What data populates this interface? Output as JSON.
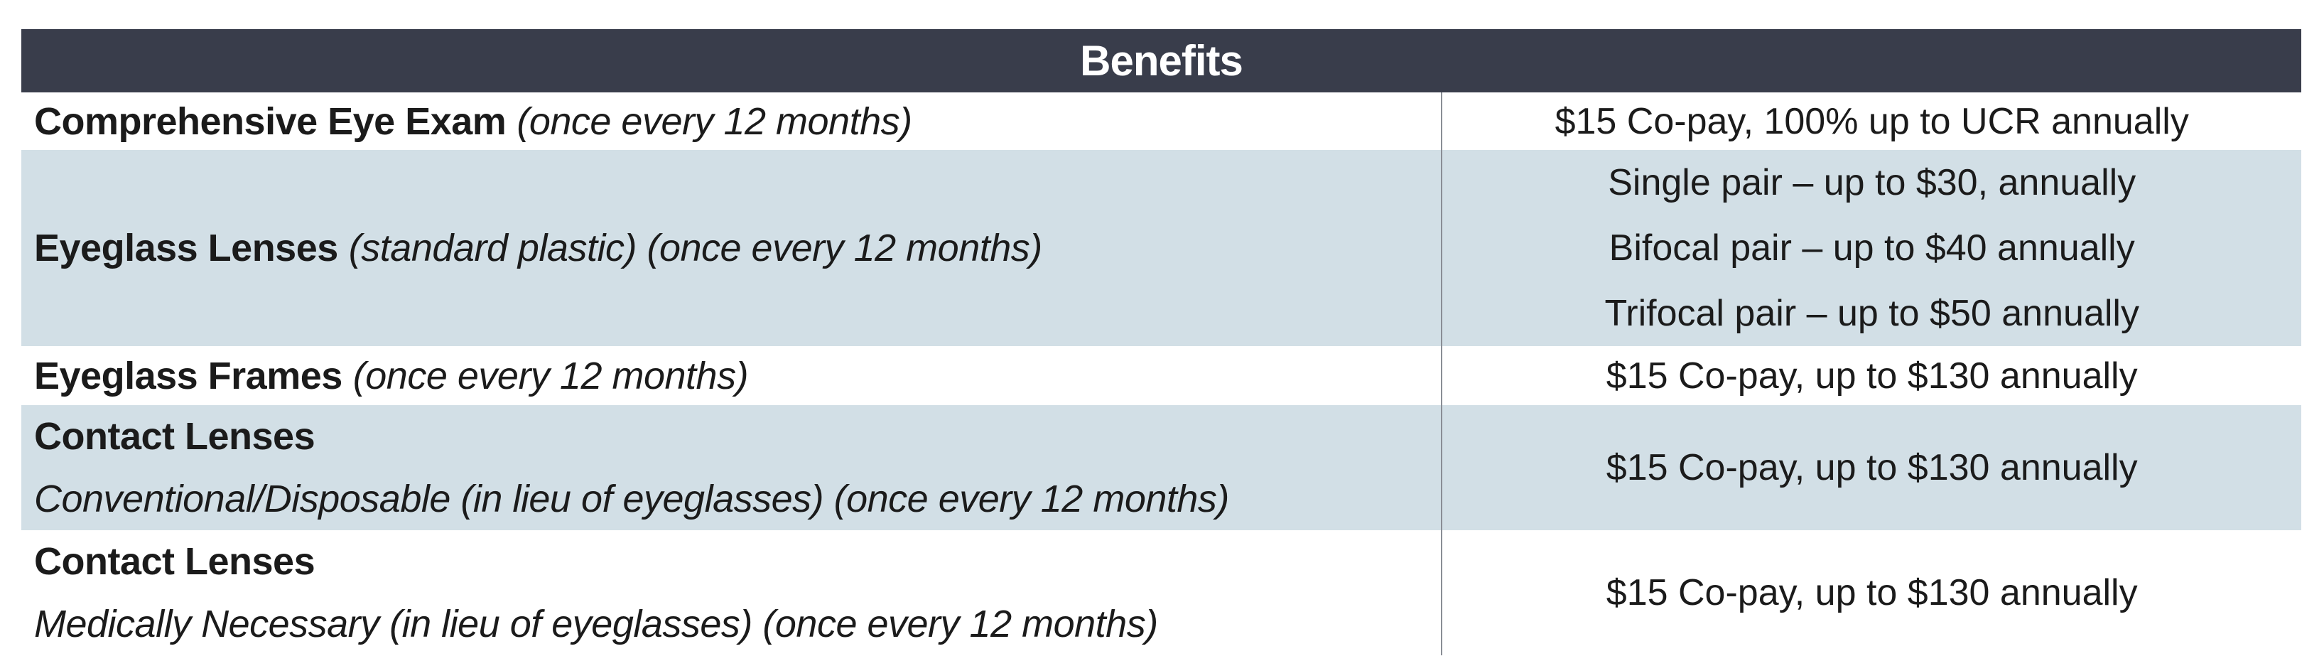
{
  "header": "Benefits",
  "rows": [
    {
      "title": "Comprehensive Eye Exam",
      "note": "(once every 12 months)",
      "subtitle": "",
      "values": [
        "$15 Co-pay, 100% up to UCR annually"
      ]
    },
    {
      "title": "Eyeglass Lenses",
      "note": "(standard plastic) (once every 12 months)",
      "subtitle": "",
      "values": [
        "Single pair – up to $30, annually",
        "Bifocal pair – up to $40 annually",
        "Trifocal pair – up to $50 annually"
      ]
    },
    {
      "title": "Eyeglass Frames",
      "note": "(once every 12 months)",
      "subtitle": "",
      "values": [
        "$15 Co-pay, up to $130 annually"
      ]
    },
    {
      "title": "Contact Lenses",
      "note": "",
      "subtitle": "Conventional/Disposable (in lieu of eyeglasses) (once every 12 months)",
      "values": [
        "$15 Co-pay, up to $130 annually"
      ]
    },
    {
      "title": "Contact Lenses",
      "note": "",
      "subtitle": "Medically Necessary (in lieu of eyeglasses) (once every 12 months)",
      "values": [
        "$15 Co-pay, up to $130 annually"
      ]
    }
  ]
}
